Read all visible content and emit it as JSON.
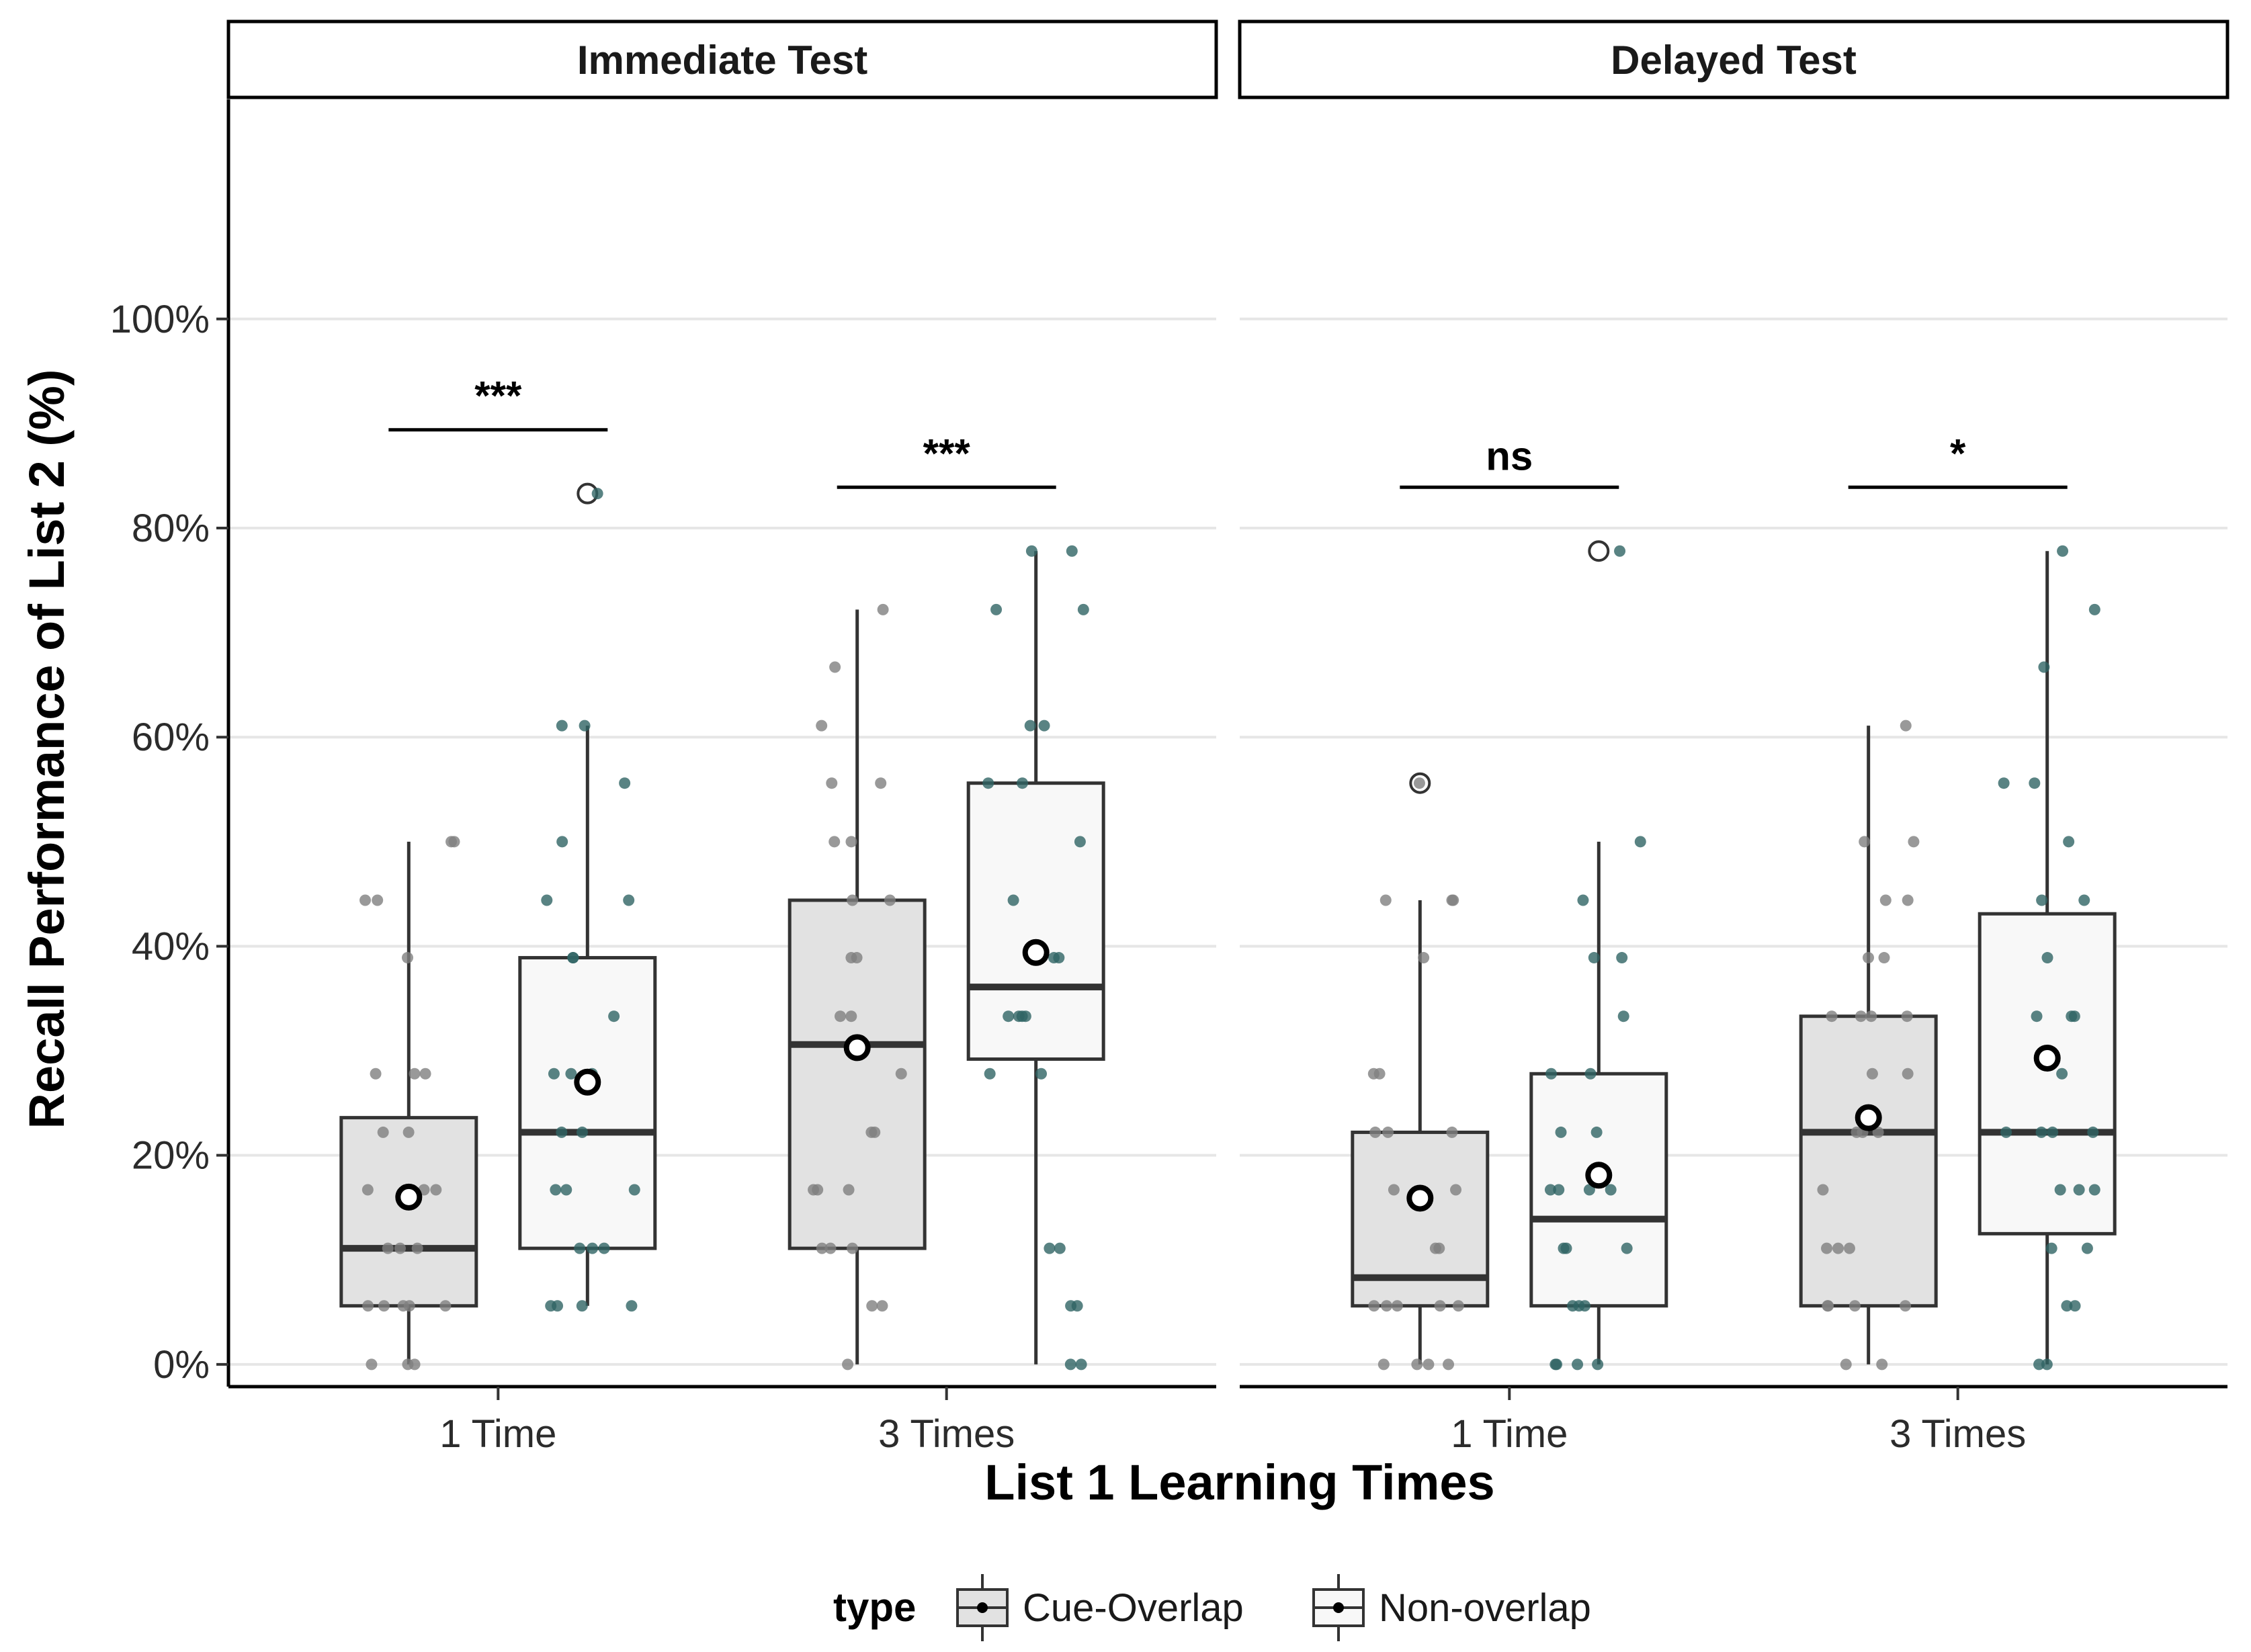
{
  "chart_data": {
    "type": "boxplot",
    "xlabel": "List 1 Learning Times",
    "ylabel": "Recall Performance of List 2 (%)",
    "ylim": [
      -2,
      121
    ],
    "y_ticks": [
      0,
      20,
      40,
      60,
      80,
      100
    ],
    "y_tick_labels": [
      "0%",
      "20%",
      "40%",
      "60%",
      "80%",
      "100%"
    ],
    "categories": [
      "1 Time",
      "3 Times"
    ],
    "legend": {
      "title": "type",
      "position": "bottom",
      "entries": [
        {
          "label": "Cue-Overlap",
          "fill": "#e2e2e2",
          "point": "#808080"
        },
        {
          "label": "Non-overlap",
          "fill": "#f8f8f8",
          "point": "#2f6464"
        }
      ]
    },
    "panels": [
      {
        "title": "Immediate Test",
        "groups": [
          {
            "category": "1 Time",
            "significance": "***",
            "bracket_y": 89.4,
            "series": [
              {
                "type": "Cue-Overlap",
                "q1": 5.6,
                "median": 11.1,
                "q3": 23.6,
                "whisker_low": 0,
                "whisker_high": 50,
                "mean": 16,
                "outliers": [],
                "points": [
                  0,
                  0,
                  0,
                  5.6,
                  5.6,
                  5.6,
                  5.6,
                  5.6,
                  11.1,
                  11.1,
                  11.1,
                  16.7,
                  16.7,
                  16.7,
                  22.2,
                  22.2,
                  27.8,
                  27.8,
                  27.8,
                  38.9,
                  44.4,
                  44.4,
                  50,
                  50
                ]
              },
              {
                "type": "Non-overlap",
                "q1": 11.1,
                "median": 22.2,
                "q3": 38.9,
                "whisker_low": 5.6,
                "whisker_high": 61.1,
                "mean": 27,
                "outliers": [
                  83.3
                ],
                "points": [
                  5.6,
                  5.6,
                  5.6,
                  5.6,
                  11.1,
                  11.1,
                  11.1,
                  16.7,
                  16.7,
                  16.7,
                  22.2,
                  22.2,
                  27.8,
                  27.8,
                  27.8,
                  33.3,
                  38.9,
                  38.9,
                  44.4,
                  44.4,
                  50,
                  55.6,
                  61.1,
                  61.1,
                  83.3
                ]
              }
            ]
          },
          {
            "category": "3 Times",
            "significance": "***",
            "bracket_y": 83.9,
            "series": [
              {
                "type": "Cue-Overlap",
                "q1": 11.1,
                "median": 30.6,
                "q3": 44.4,
                "whisker_low": 0,
                "whisker_high": 72.2,
                "mean": 30.3,
                "outliers": [],
                "points": [
                  0,
                  5.6,
                  5.6,
                  11.1,
                  11.1,
                  11.1,
                  16.7,
                  16.7,
                  16.7,
                  22.2,
                  22.2,
                  27.8,
                  33.3,
                  33.3,
                  38.9,
                  38.9,
                  44.4,
                  44.4,
                  50,
                  50,
                  55.6,
                  55.6,
                  61.1,
                  66.7,
                  72.2
                ]
              },
              {
                "type": "Non-overlap",
                "q1": 29.2,
                "median": 36.1,
                "q3": 55.6,
                "whisker_low": 0,
                "whisker_high": 77.8,
                "mean": 39.4,
                "outliers": [],
                "points": [
                  0,
                  0,
                  5.6,
                  5.6,
                  11.1,
                  11.1,
                  27.8,
                  27.8,
                  33.3,
                  33.3,
                  33.3,
                  33.3,
                  38.9,
                  38.9,
                  44.4,
                  50,
                  55.6,
                  55.6,
                  61.1,
                  61.1,
                  72.2,
                  72.2,
                  77.8,
                  77.8
                ]
              }
            ]
          }
        ]
      },
      {
        "title": "Delayed Test",
        "groups": [
          {
            "category": "1 Time",
            "significance": "ns",
            "bracket_y": 83.9,
            "series": [
              {
                "type": "Cue-Overlap",
                "q1": 5.6,
                "median": 8.3,
                "q3": 22.2,
                "whisker_low": 0,
                "whisker_high": 44.4,
                "mean": 15.9,
                "outliers": [
                  55.6
                ],
                "points": [
                  0,
                  0,
                  0,
                  0,
                  5.6,
                  5.6,
                  5.6,
                  5.6,
                  5.6,
                  11.1,
                  11.1,
                  16.7,
                  16.7,
                  22.2,
                  22.2,
                  22.2,
                  27.8,
                  27.8,
                  38.9,
                  44.4,
                  44.4,
                  44.4,
                  55.6
                ]
              },
              {
                "type": "Non-overlap",
                "q1": 5.6,
                "median": 13.9,
                "q3": 27.8,
                "whisker_low": 0,
                "whisker_high": 50,
                "mean": 18.1,
                "outliers": [
                  77.8
                ],
                "points": [
                  0,
                  0,
                  0,
                  0,
                  5.6,
                  5.6,
                  5.6,
                  11.1,
                  11.1,
                  11.1,
                  16.7,
                  16.7,
                  16.7,
                  16.7,
                  22.2,
                  22.2,
                  27.8,
                  27.8,
                  33.3,
                  38.9,
                  38.9,
                  44.4,
                  50,
                  77.8
                ]
              }
            ]
          },
          {
            "category": "3 Times",
            "significance": "*",
            "bracket_y": 83.9,
            "series": [
              {
                "type": "Cue-Overlap",
                "q1": 5.6,
                "median": 22.2,
                "q3": 33.3,
                "whisker_low": 0,
                "whisker_high": 61.1,
                "mean": 23.6,
                "outliers": [],
                "points": [
                  0,
                  0,
                  5.6,
                  5.6,
                  5.6,
                  5.6,
                  11.1,
                  11.1,
                  11.1,
                  16.7,
                  22.2,
                  22.2,
                  22.2,
                  27.8,
                  27.8,
                  33.3,
                  33.3,
                  33.3,
                  33.3,
                  38.9,
                  38.9,
                  44.4,
                  44.4,
                  50,
                  50,
                  61.1
                ]
              },
              {
                "type": "Non-overlap",
                "q1": 12.5,
                "median": 22.2,
                "q3": 43.1,
                "whisker_low": 0,
                "whisker_high": 77.8,
                "mean": 29.3,
                "outliers": [],
                "points": [
                  0,
                  0,
                  5.6,
                  5.6,
                  11.1,
                  11.1,
                  16.7,
                  16.7,
                  16.7,
                  22.2,
                  22.2,
                  22.2,
                  22.2,
                  27.8,
                  33.3,
                  33.3,
                  33.3,
                  38.9,
                  44.4,
                  44.4,
                  50,
                  55.6,
                  55.6,
                  66.7,
                  72.2,
                  77.8
                ]
              }
            ]
          }
        ]
      }
    ]
  }
}
